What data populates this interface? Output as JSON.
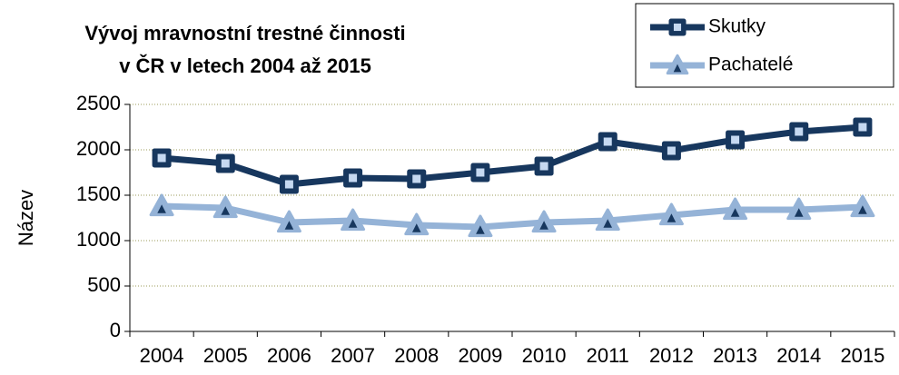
{
  "chart_data": {
    "type": "line",
    "title": [
      "Vývoj mravnostní trestné činnosti",
      "v ČR v letech 2004 až 2015"
    ],
    "y_label": "Název",
    "categories": [
      "2004",
      "2005",
      "2006",
      "2007",
      "2008",
      "2009",
      "2010",
      "2011",
      "2012",
      "2013",
      "2014",
      "2015"
    ],
    "series": [
      {
        "name": "Skutky",
        "color": "#17375e",
        "marker": "square",
        "values": [
          1910,
          1850,
          1620,
          1690,
          1680,
          1750,
          1820,
          2090,
          1990,
          2110,
          2200,
          2250
        ]
      },
      {
        "name": "Pachatelé",
        "color": "#95b3d7",
        "marker": "triangle",
        "values": [
          1380,
          1360,
          1200,
          1220,
          1170,
          1150,
          1200,
          1220,
          1280,
          1340,
          1340,
          1370
        ]
      }
    ],
    "ylim": [
      0,
      2500
    ],
    "yticks": [
      0,
      500,
      1000,
      1500,
      2000,
      2500
    ],
    "grid": true,
    "legend": "top-right"
  }
}
